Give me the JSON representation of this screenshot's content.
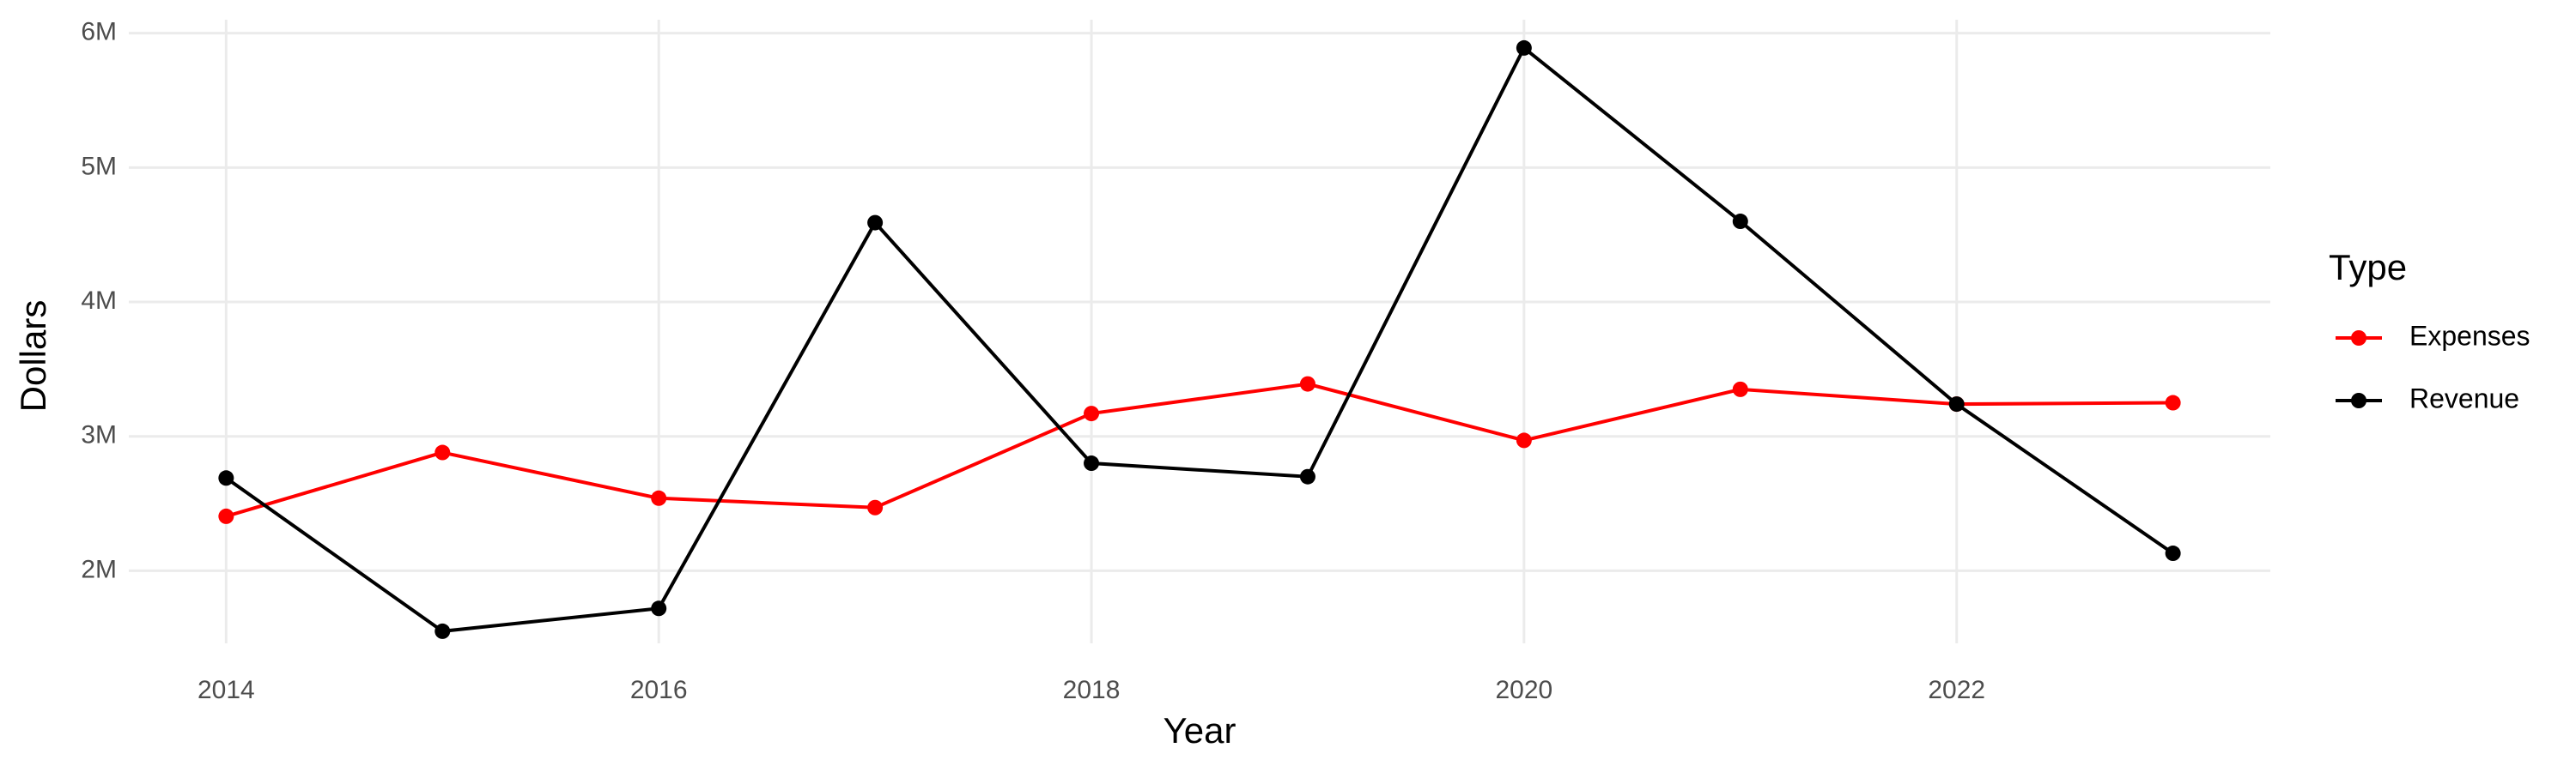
{
  "chart_data": {
    "type": "line",
    "x_label": "Year",
    "y_label": "Dollars",
    "x": [
      2014,
      2015,
      2016,
      2017,
      2018,
      2019,
      2020,
      2021,
      2022,
      2023
    ],
    "series": [
      {
        "name": "Expenses",
        "color": "#ff0000",
        "values": [
          2405000,
          2880000,
          2540000,
          2470000,
          3170000,
          3390000,
          2970000,
          3350000,
          3240000,
          3250000
        ]
      },
      {
        "name": "Revenue",
        "color": "#000000",
        "values": [
          2690000,
          1550000,
          1720000,
          4590000,
          2800000,
          2700000,
          5890000,
          4600000,
          3240000,
          2130000
        ]
      }
    ],
    "xlim": [
      2013.55,
      2023.45
    ],
    "ylim": [
      1460000,
      6100000
    ],
    "xticks": [
      2014,
      2016,
      2018,
      2020,
      2022
    ],
    "yticks": [
      {
        "value": 2000000,
        "label": "2M"
      },
      {
        "value": 3000000,
        "label": "3M"
      },
      {
        "value": 4000000,
        "label": "4M"
      },
      {
        "value": 5000000,
        "label": "5M"
      },
      {
        "value": 6000000,
        "label": "6M"
      }
    ],
    "grid": true,
    "legend_title": "Type",
    "legend_position": "right"
  }
}
